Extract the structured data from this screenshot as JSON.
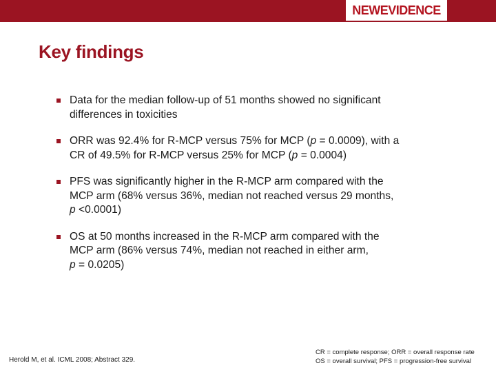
{
  "header": {
    "logo_new": "NEW",
    "logo_evidence": "EVIDENCE"
  },
  "title": "Key findings",
  "bullets": [
    {
      "lines": [
        "Data for the median follow-up of 51 months showed no significant",
        "differences in toxicities"
      ]
    },
    {
      "line1_a": "ORR was 92.4% for R-MCP versus 75% for MCP (",
      "line1_p": "p",
      "line1_b": " = 0.0009), with a",
      "line2_a": "CR of 49.5% for R-MCP versus 25% for MCP (",
      "line2_p": "p",
      "line2_b": " = 0.0004)"
    },
    {
      "line1": "PFS was significantly higher in the R-MCP arm compared with the",
      "line2": "MCP arm (68% versus 36%, median not reached versus 29 months,",
      "line3_p": "p",
      "line3_b": " <0.0001)"
    },
    {
      "line1": "OS at 50 months increased in the R-MCP arm compared with the",
      "line2": "MCP arm (86% versus 74%, median not reached in either arm,",
      "line3_p": "p",
      "line3_b": " = 0.0205)"
    }
  ],
  "footer": {
    "reference": "Herold M, et al. ICML 2008; Abstract 329.",
    "abbreviations": [
      "CR = complete response; ORR = overall response rate",
      "OS = overall survival; PFS = progression-free survival"
    ]
  },
  "colors": {
    "brand": "#9b1422",
    "text": "#1a1a1a",
    "background": "#ffffff"
  }
}
